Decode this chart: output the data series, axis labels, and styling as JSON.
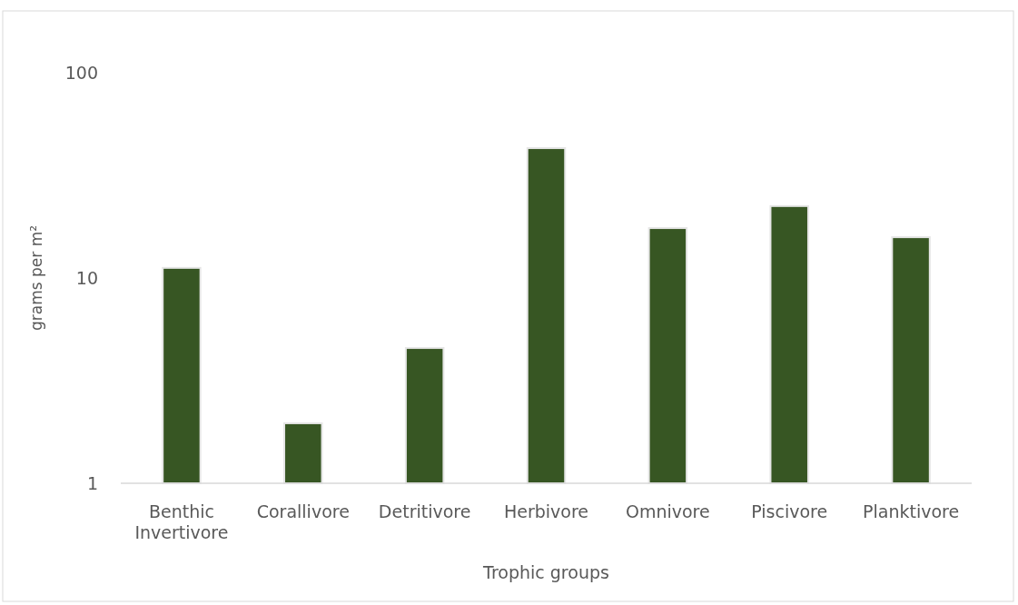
{
  "chart_data": {
    "type": "bar",
    "xlabel": "Trophic groups",
    "ylabel": "grams per m²",
    "categories": [
      "Benthic Invertivore",
      "Corallivore",
      "Detritivore",
      "Herbivore",
      "Omnivore",
      "Piscivore",
      "Planktivore"
    ],
    "values": [
      11.2,
      1.96,
      4.56,
      42.9,
      17.5,
      22.4,
      15.8
    ],
    "color": "#375623",
    "log": true,
    "ylim": [
      1,
      100
    ],
    "yticks": [
      1,
      10,
      100
    ],
    "grid": false
  }
}
